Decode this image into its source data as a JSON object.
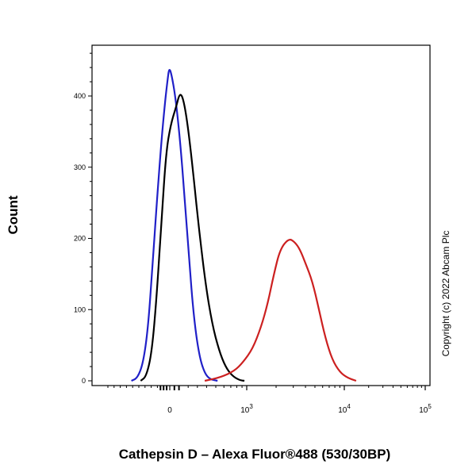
{
  "chart_data": {
    "type": "line",
    "xlabel": "Cathepsin D – Alexa Fluor®488 (530/30BP)",
    "ylabel": "Count",
    "x_scale": "biexponential",
    "xlim": [
      -1000,
      100000
    ],
    "ylim": [
      0,
      470
    ],
    "x_tick_labels": [
      {
        "base": "0",
        "exp": ""
      },
      {
        "base": "10",
        "exp": "3"
      },
      {
        "base": "10",
        "exp": "4"
      },
      {
        "base": "10",
        "exp": "5"
      }
    ],
    "y_ticks": [
      0,
      100,
      200,
      300,
      400
    ],
    "y_tick_labels": [
      "0",
      "100",
      "200",
      "300",
      "400"
    ],
    "grid": false,
    "legend": "none",
    "copyright": "Copyright (c) 2022 Abcam Plc",
    "series": [
      {
        "color": "#2020c8",
        "points": [
          [
            -620,
            0
          ],
          [
            -520,
            4
          ],
          [
            -430,
            25
          ],
          [
            -350,
            75
          ],
          [
            -280,
            160
          ],
          [
            -210,
            250
          ],
          [
            -150,
            320
          ],
          [
            -90,
            380
          ],
          [
            -40,
            420
          ],
          [
            -10,
            440
          ],
          [
            20,
            430
          ],
          [
            60,
            400
          ],
          [
            110,
            340
          ],
          [
            160,
            260
          ],
          [
            210,
            170
          ],
          [
            260,
            90
          ],
          [
            320,
            35
          ],
          [
            380,
            10
          ],
          [
            440,
            2
          ],
          [
            520,
            0
          ]
        ]
      },
      {
        "color": "#000000",
        "points": [
          [
            -470,
            0
          ],
          [
            -380,
            6
          ],
          [
            -290,
            40
          ],
          [
            -210,
            120
          ],
          [
            -130,
            230
          ],
          [
            -60,
            320
          ],
          [
            10,
            360
          ],
          [
            70,
            385
          ],
          [
            110,
            405
          ],
          [
            150,
            395
          ],
          [
            200,
            355
          ],
          [
            260,
            285
          ],
          [
            320,
            210
          ],
          [
            390,
            135
          ],
          [
            460,
            80
          ],
          [
            540,
            42
          ],
          [
            620,
            20
          ],
          [
            720,
            7
          ],
          [
            850,
            1
          ],
          [
            950,
            0
          ]
        ]
      },
      {
        "color": "#cc2020",
        "points": [
          [
            380,
            0
          ],
          [
            560,
            5
          ],
          [
            760,
            14
          ],
          [
            920,
            26
          ],
          [
            1150,
            45
          ],
          [
            1400,
            75
          ],
          [
            1650,
            110
          ],
          [
            1900,
            150
          ],
          [
            2200,
            185
          ],
          [
            2700,
            200
          ],
          [
            3100,
            195
          ],
          [
            3500,
            185
          ],
          [
            4000,
            165
          ],
          [
            4700,
            140
          ],
          [
            5500,
            100
          ],
          [
            6400,
            60
          ],
          [
            7500,
            30
          ],
          [
            9000,
            12
          ],
          [
            11000,
            4
          ],
          [
            14000,
            0
          ]
        ]
      }
    ]
  }
}
